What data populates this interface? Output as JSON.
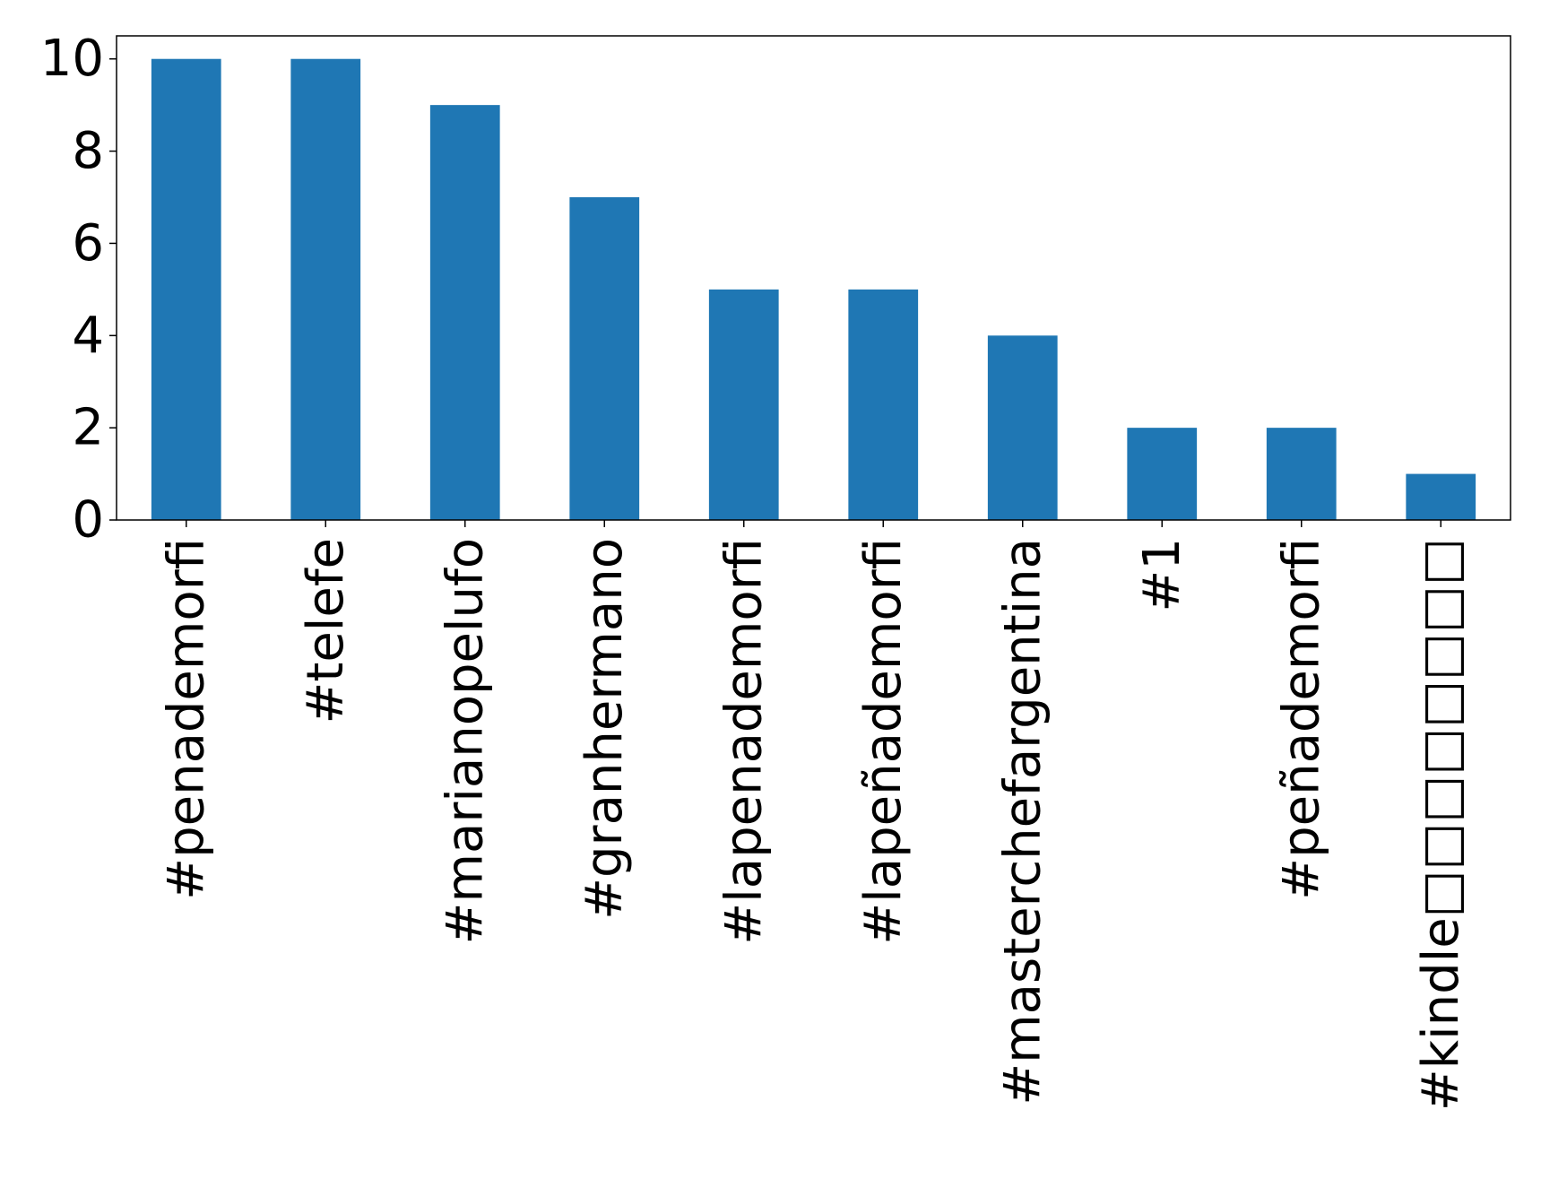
{
  "chart_data": {
    "type": "bar",
    "categories": [
      "#penademorfi",
      "#telefe",
      "#marianopelufo",
      "#granhermano",
      "#lapenademorfi",
      "#lapeñademorfi",
      "#masterchefargentina",
      "#1",
      "#peñademorfi",
      "#kindle□□□□□□□□"
    ],
    "values": [
      10,
      10,
      9,
      7,
      5,
      5,
      4,
      2,
      2,
      1
    ],
    "title": "",
    "xlabel": "",
    "ylabel": "",
    "ylim": [
      0,
      10.5
    ],
    "yticks": [
      "0",
      "2",
      "4",
      "6",
      "8",
      "10"
    ],
    "grid": false,
    "legend": "none",
    "bar_color": "#1f77b4"
  }
}
